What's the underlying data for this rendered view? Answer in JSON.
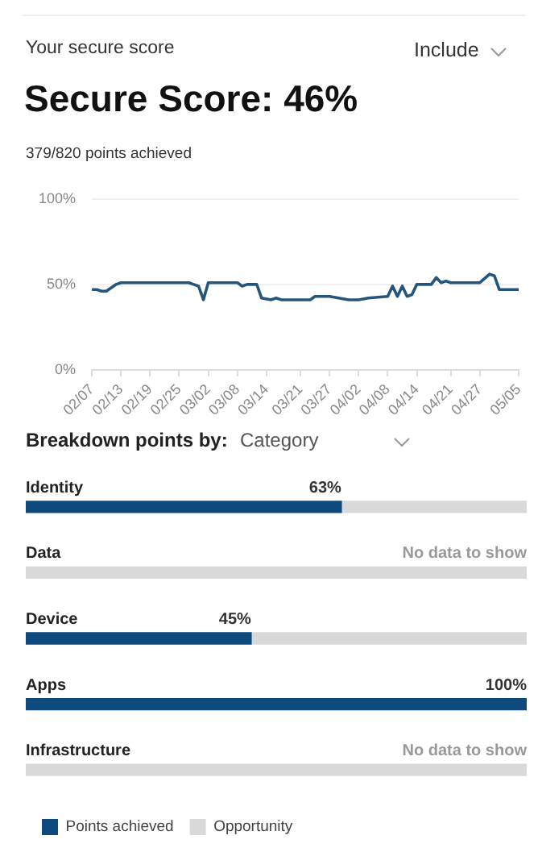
{
  "chart_data": [
    {
      "type": "line",
      "title": "Secure Score: 46%",
      "subtitle": "379/820 points achieved",
      "annotations": [
        "Your secure score",
        "Include"
      ],
      "x": [
        "--02-07",
        "--02-08",
        "--02-09",
        "--02-10",
        "--02-12",
        "--02-13",
        "--02-27",
        "--02-28",
        "--02-29",
        "--03-01",
        "--03-02",
        "--03-08",
        "--03-09",
        "--03-10",
        "--03-12",
        "--03-13",
        "--03-15",
        "--03-16",
        "--03-17",
        "--03-23",
        "--03-24",
        "--03-27",
        "--03-31",
        "--04-02",
        "--04-04",
        "--04-08",
        "--04-09",
        "--04-10",
        "--04-11",
        "--04-12",
        "--04-13",
        "--04-14",
        "--04-17",
        "--04-18",
        "--04-19",
        "--04-20",
        "--04-21",
        "--04-27",
        "--04-29",
        "--04-30",
        "--05-01",
        "--05-05"
      ],
      "series": [
        {
          "color": "#24557c",
          "values": [
            47,
            47,
            46,
            46,
            50,
            51,
            51,
            50,
            49,
            41,
            51,
            51,
            49,
            50,
            50,
            42,
            41,
            42,
            41,
            41,
            43,
            43,
            41,
            41,
            42,
            43,
            49,
            43,
            49,
            43,
            44,
            50,
            50,
            54,
            51,
            52,
            51,
            51,
            56,
            55,
            47,
            47
          ]
        }
      ],
      "xlim": [
        "--02-07",
        "--05-05"
      ],
      "xticks": [
        {
          "value": "--02-07",
          "label": "02/07"
        },
        {
          "value": "--02-13",
          "label": "02/13"
        },
        {
          "value": "--02-19",
          "label": "02/19"
        },
        {
          "value": "--02-25",
          "label": "02/25"
        },
        {
          "value": "--03-02",
          "label": "03/02"
        },
        {
          "value": "--03-08",
          "label": "03/08"
        },
        {
          "value": "--03-14",
          "label": "03/14"
        },
        {
          "value": "--03-21",
          "label": "03/21"
        },
        {
          "value": "--03-27",
          "label": "03/27"
        },
        {
          "value": "--04-02",
          "label": "04/02"
        },
        {
          "value": "--04-08",
          "label": "04/08"
        },
        {
          "value": "--04-14",
          "label": "04/14"
        },
        {
          "value": "--04-21",
          "label": "04/21"
        },
        {
          "value": "--04-27",
          "label": "04/27"
        },
        {
          "value": "--05-05",
          "label": "05/05"
        }
      ],
      "ylim": [
        0,
        100
      ],
      "yticks": [
        {
          "value": 0,
          "label": "0%"
        },
        {
          "value": 50,
          "label": "50%"
        },
        {
          "value": 100,
          "label": "100%"
        }
      ],
      "grid": "y",
      "legend": false,
      "marker": "none",
      "line_style": "solid"
    },
    {
      "type": "bar",
      "orientation": "horizontal",
      "stacked": true,
      "title": "Breakdown points by:",
      "annotations": [
        "Category"
      ],
      "categories": [
        "Identity",
        "Data",
        "Device",
        "Apps",
        "Infrastructure"
      ],
      "series": [
        {
          "name": "Points achieved",
          "color": "#0f4a7c",
          "values": [
            63,
            null,
            45,
            100,
            null
          ],
          "value_labels": [
            "63%",
            "No data to show",
            "45%",
            "100%",
            "No data to show"
          ]
        },
        {
          "name": "Opportunity",
          "color": "#d9d9d9",
          "values": [
            37,
            100,
            55,
            0,
            100
          ]
        }
      ],
      "xlim": [
        0,
        100
      ],
      "grid": false,
      "legend": "bottom"
    }
  ]
}
